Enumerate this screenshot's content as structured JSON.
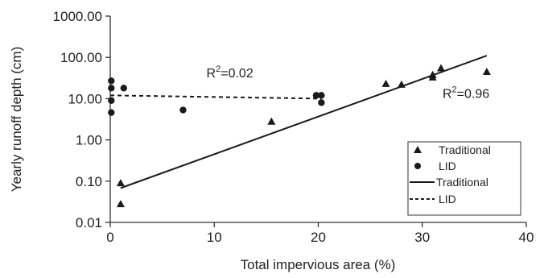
{
  "chart_data": {
    "type": "scatter",
    "xlabel": "Total impervious area (%)",
    "ylabel": "Yearly runoff depth (cm)",
    "xlim": [
      0,
      40
    ],
    "ylim": [
      0.01,
      1000
    ],
    "yscale": "log",
    "x_ticks": [
      0,
      10,
      20,
      30,
      40
    ],
    "x_tick_labels": [
      "0",
      "10",
      "20",
      "30",
      "40"
    ],
    "y_ticks": [
      0.01,
      0.1,
      1,
      10,
      100,
      1000
    ],
    "y_tick_labels": [
      "0.01",
      "0.10",
      "1.00",
      "10.00",
      "100.00",
      "1000.00"
    ],
    "grid": false,
    "legend_position": "bottom-right",
    "series": [
      {
        "name": "Traditional",
        "kind": "scatter",
        "marker": "triangle",
        "points": [
          [
            1.0,
            0.09
          ],
          [
            1.0,
            0.028
          ],
          [
            15.5,
            2.8
          ],
          [
            26.5,
            23
          ],
          [
            28.0,
            22
          ],
          [
            31.0,
            38
          ],
          [
            31.0,
            33
          ],
          [
            31.8,
            55
          ],
          [
            36.2,
            45
          ]
        ]
      },
      {
        "name": "LID",
        "kind": "scatter",
        "marker": "circle",
        "points": [
          [
            0.1,
            27
          ],
          [
            0.1,
            18
          ],
          [
            0.1,
            9
          ],
          [
            0.1,
            4.6
          ],
          [
            1.3,
            18
          ],
          [
            7.0,
            5.3
          ],
          [
            19.8,
            12
          ],
          [
            20.3,
            12
          ],
          [
            20.3,
            8
          ]
        ]
      },
      {
        "name": "Traditional",
        "kind": "line",
        "style": "solid",
        "points": [
          [
            1.0,
            0.068
          ],
          [
            36.2,
            110
          ]
        ]
      },
      {
        "name": "LID",
        "kind": "line",
        "style": "dashed",
        "points": [
          [
            0.0,
            12
          ],
          [
            20.3,
            10
          ]
        ]
      }
    ],
    "annotations": [
      {
        "id": "lid",
        "prefix": "R",
        "sup": "2",
        "suffix": "=0.02",
        "x": 11.5,
        "y": 33
      },
      {
        "id": "trad",
        "prefix": "R",
        "sup": "2",
        "suffix": "=0.96",
        "x": 34.2,
        "y": 10.5
      }
    ],
    "colors": {
      "marks": "#1a1a1a",
      "axis": "#333333"
    }
  }
}
